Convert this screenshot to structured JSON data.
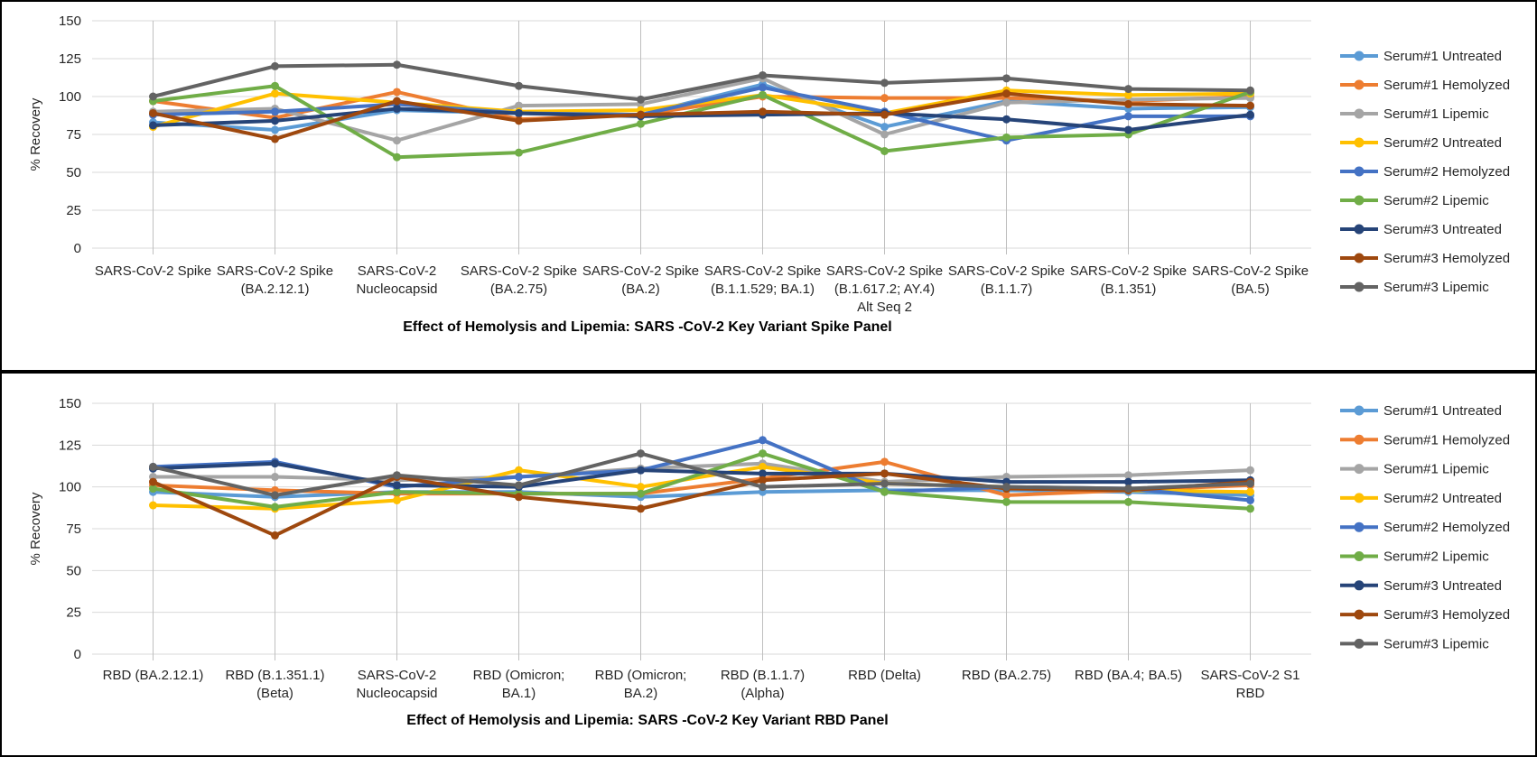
{
  "page": {
    "background": "#ffffff",
    "panel_border_color": "#000000",
    "gridline_color": "#D9D9D9",
    "category_line_color": "#BFBFBF",
    "text_color": "#262626"
  },
  "chart_data": [
    {
      "type": "line",
      "title": "Effect of Hemolysis and Lipemia: SARS -CoV-2 Key Variant Spike Panel",
      "xlabel": "",
      "ylabel": "% Recovery",
      "ylim": [
        0,
        150
      ],
      "yticks": [
        0,
        25,
        50,
        75,
        100,
        125,
        150
      ],
      "grid": true,
      "legend_position": "right",
      "categories": [
        "SARS-CoV-2 Spike",
        "SARS-CoV-2 Spike (BA.2.12.1)",
        "SARS-CoV-2 Nucleocapsid",
        "SARS-CoV-2 Spike (BA.2.75)",
        "SARS-CoV-2 Spike (BA.2)",
        "SARS-CoV-2 Spike (B.1.1.529; BA.1)",
        "SARS-CoV-2 Spike (B.1.617.2; AY.4) Alt Seq 2",
        "SARS-CoV-2 Spike (B.1.1.7)",
        "SARS-CoV-2 Spike (B.1.351)",
        "SARS-CoV-2 Spike (BA.5)"
      ],
      "category_lines": [
        [
          "SARS-CoV-2 Spike"
        ],
        [
          "SARS-CoV-2 Spike",
          "(BA.2.12.1)"
        ],
        [
          "SARS-CoV-2",
          "Nucleocapsid"
        ],
        [
          "SARS-CoV-2 Spike",
          "(BA.2.75)"
        ],
        [
          "SARS-CoV-2 Spike",
          "(BA.2)"
        ],
        [
          "SARS-CoV-2 Spike",
          "(B.1.1.529; BA.1)"
        ],
        [
          "SARS-CoV-2 Spike",
          "(B.1.617.2; AY.4)",
          "Alt Seq 2"
        ],
        [
          "SARS-CoV-2 Spike",
          "(B.1.1.7)"
        ],
        [
          "SARS-CoV-2 Spike",
          "(B.1.351)"
        ],
        [
          "SARS-CoV-2 Spike",
          "(BA.5)"
        ]
      ],
      "series": [
        {
          "name": "Serum#1 Untreated",
          "color": "#5B9BD5",
          "values": [
            83,
            78,
            91,
            89,
            88,
            108,
            80,
            97,
            92,
            93
          ]
        },
        {
          "name": "Serum#1 Hemolyzed",
          "color": "#ED7D31",
          "values": [
            97,
            86,
            103,
            85,
            88,
            100,
            99,
            99,
            97,
            100
          ]
        },
        {
          "name": "Serum#1 Lipemic",
          "color": "#A5A5A5",
          "values": [
            90,
            92,
            71,
            94,
            95,
            112,
            75,
            96,
            98,
            99
          ]
        },
        {
          "name": "Serum#2 Untreated",
          "color": "#FFC000",
          "values": [
            80,
            102,
            96,
            90,
            91,
            101,
            89,
            104,
            101,
            102
          ]
        },
        {
          "name": "Serum#2 Hemolyzed",
          "color": "#4472C4",
          "values": [
            88,
            90,
            95,
            89,
            88,
            106,
            90,
            71,
            87,
            87
          ]
        },
        {
          "name": "Serum#2 Lipemic",
          "color": "#70AD47",
          "values": [
            97,
            107,
            60,
            63,
            82,
            101,
            64,
            73,
            75,
            103
          ]
        },
        {
          "name": "Serum#3 Untreated",
          "color": "#264478",
          "values": [
            81,
            84,
            92,
            89,
            87,
            88,
            89,
            85,
            78,
            88
          ]
        },
        {
          "name": "Serum#3 Hemolyzed",
          "color": "#9E480E",
          "values": [
            89,
            72,
            97,
            84,
            88,
            90,
            88,
            102,
            95,
            94
          ]
        },
        {
          "name": "Serum#3 Lipemic",
          "color": "#636363",
          "values": [
            100,
            120,
            121,
            107,
            98,
            114,
            109,
            112,
            105,
            104
          ]
        }
      ]
    },
    {
      "type": "line",
      "title": "Effect of Hemolysis and Lipemia: SARS -CoV-2 Key Variant RBD Panel",
      "xlabel": "",
      "ylabel": "% Recovery",
      "ylim": [
        0,
        150
      ],
      "yticks": [
        0,
        25,
        50,
        75,
        100,
        125,
        150
      ],
      "grid": true,
      "legend_position": "right",
      "categories": [
        "RBD (BA.2.12.1)",
        "RBD (B.1.351.1) (Beta)",
        "SARS-CoV-2 Nucleocapsid",
        "RBD (Omicron; BA.1)",
        "RBD (Omicron; BA.2)",
        "RBD (B.1.1.7) (Alpha)",
        "RBD (Delta)",
        "RBD (BA.2.75)",
        "RBD (BA.4; BA.5)",
        "SARS-CoV-2 S1 RBD"
      ],
      "category_lines": [
        [
          "RBD (BA.2.12.1)"
        ],
        [
          "RBD (B.1.351.1)",
          "(Beta)"
        ],
        [
          "SARS-CoV-2",
          "Nucleocapsid"
        ],
        [
          "RBD (Omicron;",
          "BA.1)"
        ],
        [
          "RBD (Omicron;",
          "BA.2)"
        ],
        [
          "RBD (B.1.1.7)",
          "(Alpha)"
        ],
        [
          "RBD (Delta)"
        ],
        [
          "RBD (BA.2.75)"
        ],
        [
          "RBD (BA.4; BA.5)"
        ],
        [
          "SARS-CoV-2 S1",
          "RBD"
        ]
      ],
      "series": [
        {
          "name": "Serum#1 Untreated",
          "color": "#5B9BD5",
          "values": [
            97,
            94,
            97,
            97,
            94,
            97,
            98,
            98,
            97,
            95
          ]
        },
        {
          "name": "Serum#1 Hemolyzed",
          "color": "#ED7D31",
          "values": [
            101,
            98,
            96,
            96,
            96,
            105,
            115,
            95,
            98,
            101
          ]
        },
        {
          "name": "Serum#1 Lipemic",
          "color": "#A5A5A5",
          "values": [
            106,
            106,
            104,
            106,
            111,
            114,
            103,
            106,
            107,
            110
          ]
        },
        {
          "name": "Serum#2 Untreated",
          "color": "#FFC000",
          "values": [
            89,
            87,
            92,
            110,
            100,
            112,
            102,
            100,
            98,
            97
          ]
        },
        {
          "name": "Serum#2 Hemolyzed",
          "color": "#4472C4",
          "values": [
            112,
            115,
            100,
            106,
            110,
            128,
            97,
            100,
            99,
            92
          ]
        },
        {
          "name": "Serum#2 Lipemic",
          "color": "#70AD47",
          "values": [
            99,
            88,
            97,
            96,
            96,
            120,
            97,
            91,
            91,
            87
          ]
        },
        {
          "name": "Serum#3 Untreated",
          "color": "#264478",
          "values": [
            111,
            114,
            101,
            100,
            110,
            108,
            108,
            103,
            103,
            104
          ]
        },
        {
          "name": "Serum#3 Hemolyzed",
          "color": "#9E480E",
          "values": [
            103,
            71,
            106,
            94,
            87,
            104,
            108,
            99,
            98,
            103
          ]
        },
        {
          "name": "Serum#3 Lipemic",
          "color": "#636363",
          "values": [
            112,
            95,
            107,
            101,
            120,
            100,
            102,
            100,
            99,
            102
          ]
        }
      ]
    }
  ]
}
